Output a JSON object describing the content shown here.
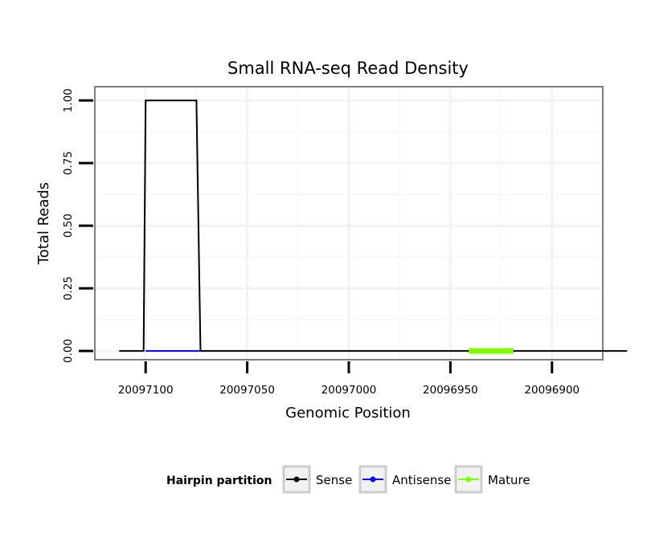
{
  "chart_data": {
    "type": "line",
    "title": "Small RNA-seq Read Density",
    "xlabel": "Genomic Position",
    "ylabel": "Total Reads",
    "x_reversed": true,
    "xlim": [
      20097125,
      20096875
    ],
    "ylim": [
      -0.035,
      1.055
    ],
    "x_ticks": [
      20097100,
      20097050,
      20097000,
      20096950,
      20096900
    ],
    "x_tick_labels": [
      "20097100",
      "20097050",
      "20097000",
      "20096950",
      "20096900"
    ],
    "y_ticks": [
      0,
      0.25,
      0.5,
      0.75,
      1.0
    ],
    "y_tick_labels": [
      "0.00",
      "0.25",
      "0.50",
      "0.75",
      "1.00"
    ],
    "grid": true,
    "series": [
      {
        "name": "Sense",
        "color": "#000000",
        "x": [
          20097113,
          20097101,
          20097100,
          20097075,
          20097073,
          20096863
        ],
        "y": [
          0,
          0,
          1,
          1,
          0,
          0
        ]
      },
      {
        "name": "Antisense",
        "color": "#0000ff",
        "x": [
          20097100,
          20097073
        ],
        "y": [
          0,
          0
        ]
      },
      {
        "name": "Mature",
        "color": "#7fff00",
        "x": [
          20096941,
          20096919
        ],
        "y": [
          0,
          0
        ]
      }
    ],
    "legend": {
      "title": "Hairpin partition",
      "position": "bottom",
      "entries": [
        "Sense",
        "Antisense",
        "Mature"
      ]
    }
  }
}
